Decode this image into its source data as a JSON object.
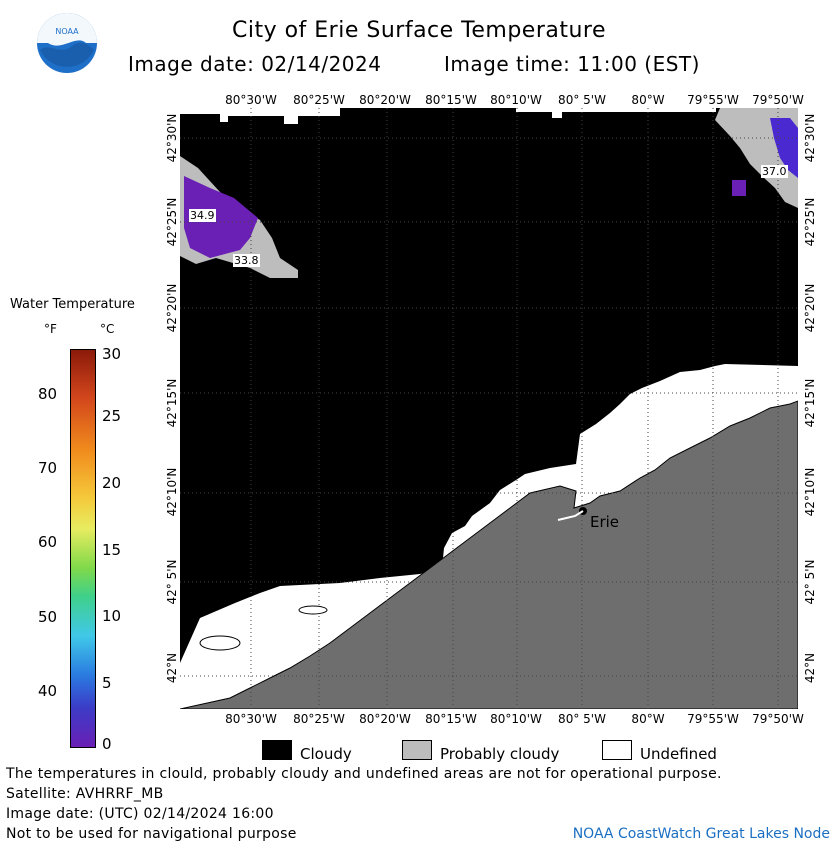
{
  "header": {
    "title": "City of Erie Surface Temperature",
    "image_date": "Image date: 02/14/2024",
    "image_time": "Image time: 11:00 (EST)"
  },
  "logo": {
    "text": "NOAA"
  },
  "map": {
    "lon_labels": [
      "80°30'W",
      "80°25'W",
      "80°20'W",
      "80°15'W",
      "80°10'W",
      "80° 5'W",
      "80°W",
      "79°55'W",
      "79°50'W"
    ],
    "lat_labels": [
      "42°30'N",
      "42°25'N",
      "42°20'N",
      "42°15'N",
      "42°10'N",
      "42° 5'N",
      "42°N"
    ],
    "temp_labels": [
      "34.9",
      "33.8",
      "37.0"
    ],
    "city": "Erie",
    "colors": {
      "cloudy": "#000000",
      "probably_cloudy": "#bdbdbd",
      "undefined": "#ffffff",
      "land": "#6e6e6e",
      "water_cold": "#6a1fb5",
      "water_cold2": "#4a2ad0"
    }
  },
  "legend": {
    "title": "Water Temperature",
    "unit_f": "°F",
    "unit_c": "°C",
    "f_ticks": [
      "80",
      "70",
      "60",
      "50",
      "40"
    ],
    "c_ticks": [
      "30",
      "25",
      "20",
      "15",
      "10",
      "5",
      "0"
    ]
  },
  "key": {
    "cloudy": "Cloudy",
    "probably_cloudy": "Probably cloudy",
    "undefined": "Undefined"
  },
  "footer": {
    "line1": "The temperatures in clould, probably cloudy and undefined areas are not for operational purpose.",
    "line2": "Satellite: AVHRRF_MB",
    "line3": "Image date: (UTC) 02/14/2024  16:00",
    "line4": "Not to be used for navigational purpose",
    "credit": "NOAA CoastWatch Great Lakes Node"
  }
}
